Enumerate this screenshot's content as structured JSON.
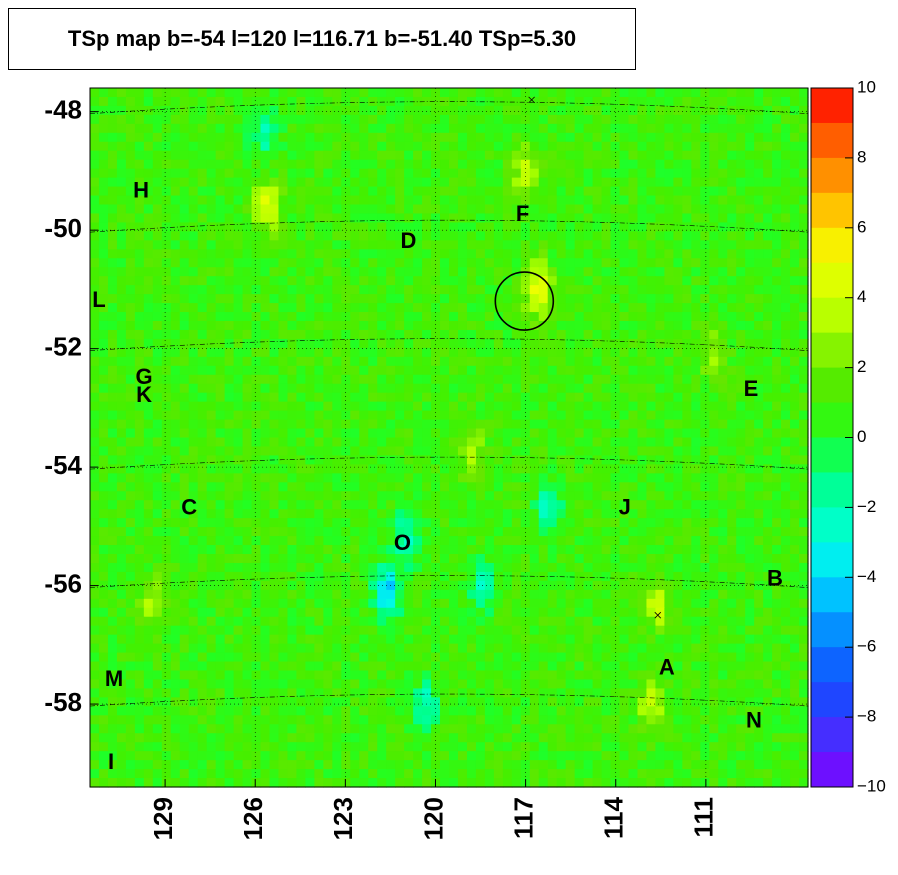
{
  "chart_data": {
    "type": "heatmap",
    "title": "TSp map b=-54 l=120 l=116.71 b=-51.40 TSp=5.30",
    "xlabel": "",
    "ylabel": "",
    "x_axis": {
      "range": [
        131.5,
        107.6
      ],
      "reversed": true,
      "ticks": [
        129,
        126,
        123,
        120,
        117,
        114,
        111
      ],
      "tick_labels": [
        "129",
        "126",
        "123",
        "120",
        "117",
        "114",
        "111"
      ]
    },
    "y_axis": {
      "range": [
        -59.4,
        -47.6
      ],
      "ticks": [
        -48,
        -50,
        -52,
        -54,
        -56,
        -58
      ],
      "tick_labels": [
        "-48",
        "-50",
        "-52",
        "-54",
        "-56",
        "-58"
      ]
    },
    "colorbar": {
      "range": [
        -10,
        10
      ],
      "ticks": [
        10,
        8,
        6,
        4,
        2,
        0,
        -2,
        -4,
        -6,
        -8,
        -10
      ],
      "tick_labels": [
        "10",
        "8",
        "6",
        "4",
        "2",
        "0",
        "−2",
        "−4",
        "−6",
        "−8",
        "−10"
      ]
    },
    "grid": true,
    "background_ts": 0.8,
    "hotspots": [
      {
        "l": 116.6,
        "b": -51.0,
        "ts": 5.3
      },
      {
        "l": 117.0,
        "b": -49.0,
        "ts": 3.6
      },
      {
        "l": 125.6,
        "b": -49.6,
        "ts": 4.4
      },
      {
        "l": 112.6,
        "b": -56.3,
        "ts": 4.0
      },
      {
        "l": 112.8,
        "b": -58.0,
        "ts": 3.8
      },
      {
        "l": 118.8,
        "b": -53.7,
        "ts": 3.2
      },
      {
        "l": 129.4,
        "b": -56.3,
        "ts": 3.0
      },
      {
        "l": 110.8,
        "b": -52.1,
        "ts": 2.8
      }
    ],
    "coldspots": [
      {
        "l": 121.6,
        "b": -56.1,
        "ts": -4.4
      },
      {
        "l": 121.0,
        "b": -55.2,
        "ts": -2.5
      },
      {
        "l": 116.2,
        "b": -54.7,
        "ts": -2.4
      },
      {
        "l": 125.7,
        "b": -48.3,
        "ts": -2.2
      },
      {
        "l": 118.4,
        "b": -56.0,
        "ts": -2.0
      },
      {
        "l": 120.3,
        "b": -58.0,
        "ts": -2.0
      }
    ],
    "circle": {
      "l": 116.71,
      "b": -51.4,
      "radius_deg": 0.5
    },
    "cross_markers": [
      {
        "l": 116.8,
        "b": -47.8
      },
      {
        "l": 112.6,
        "b": -56.5
      }
    ],
    "source_labels": [
      {
        "text": "H",
        "l": 129.8,
        "b": -49.35
      },
      {
        "text": "F",
        "l": 117.1,
        "b": -49.75
      },
      {
        "text": "D",
        "l": 120.9,
        "b": -50.2
      },
      {
        "text": "L",
        "l": 131.2,
        "b": -51.2
      },
      {
        "text": "G",
        "l": 129.7,
        "b": -52.5
      },
      {
        "text": "K",
        "l": 129.7,
        "b": -52.8
      },
      {
        "text": "E",
        "l": 109.5,
        "b": -52.7
      },
      {
        "text": "C",
        "l": 128.2,
        "b": -54.7
      },
      {
        "text": "J",
        "l": 113.7,
        "b": -54.7
      },
      {
        "text": "O",
        "l": 121.1,
        "b": -55.3
      },
      {
        "text": "B",
        "l": 108.7,
        "b": -55.9
      },
      {
        "text": "A",
        "l": 112.3,
        "b": -57.4
      },
      {
        "text": "M",
        "l": 130.7,
        "b": -57.6
      },
      {
        "text": "N",
        "l": 109.4,
        "b": -58.3
      },
      {
        "text": "I",
        "l": 130.8,
        "b": -59.0
      }
    ]
  }
}
